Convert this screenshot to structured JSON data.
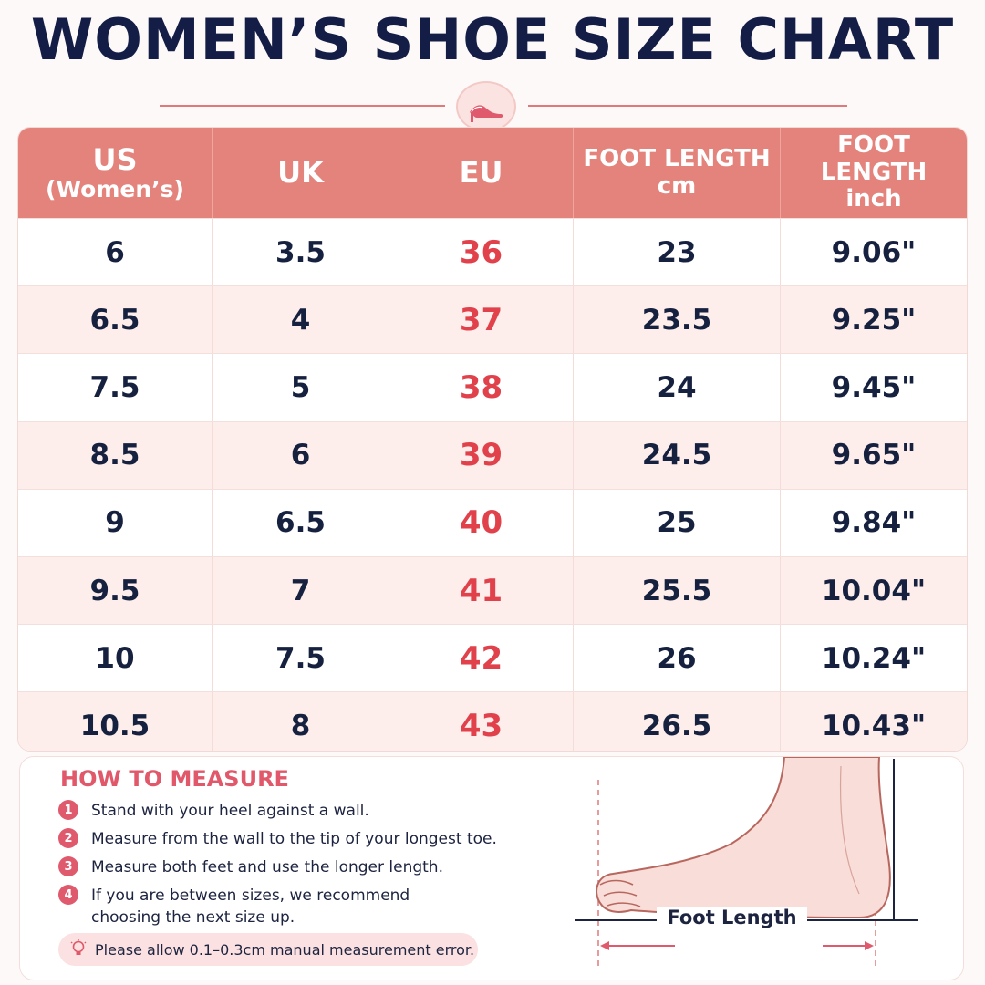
{
  "title": "WOMEN’S SHOE SIZE CHART",
  "header": {
    "us": "US",
    "us_sub": "(Women’s)",
    "uk": "UK",
    "eu": "EU",
    "cm_1": "FOOT LENGTH",
    "cm_2": "cm",
    "in_1": "FOOT LENGTH",
    "in_2": "inch"
  },
  "rows": [
    {
      "us": "6",
      "uk": "3.5",
      "eu": "36",
      "cm": "23",
      "inch": "9.06\""
    },
    {
      "us": "6.5",
      "uk": "4",
      "eu": "37",
      "cm": "23.5",
      "inch": "9.25\""
    },
    {
      "us": "7.5",
      "uk": "5",
      "eu": "38",
      "cm": "24",
      "inch": "9.45\""
    },
    {
      "us": "8.5",
      "uk": "6",
      "eu": "39",
      "cm": "24.5",
      "inch": "9.65\""
    },
    {
      "us": "9",
      "uk": "6.5",
      "eu": "40",
      "cm": "25",
      "inch": "9.84\""
    },
    {
      "us": "9.5",
      "uk": "7",
      "eu": "41",
      "cm": "25.5",
      "inch": "10.04\""
    },
    {
      "us": "10",
      "uk": "7.5",
      "eu": "42",
      "cm": "26",
      "inch": "10.24\""
    },
    {
      "us": "10.5",
      "uk": "8",
      "eu": "43",
      "cm": "26.5",
      "inch": "10.43\""
    }
  ],
  "measure": {
    "title": "HOW TO MEASURE",
    "steps": [
      {
        "n": "1",
        "text": "Stand with your heel against a wall."
      },
      {
        "n": "2",
        "text": "Measure from the wall to the tip of your longest toe."
      },
      {
        "n": "3",
        "text": "Measure both feet and use the longer length."
      },
      {
        "n": "4",
        "text": "If you are between sizes, we recommend",
        "text2": "choosing the next size up."
      }
    ],
    "note": "Please allow 0.1–0.3cm manual measurement error.",
    "foot_label": "Foot Length"
  },
  "colors": {
    "title": "#131d45",
    "header_bg": "#e4837c",
    "eu_accent": "#e0414a",
    "row_alt": "#fdeeeb",
    "measure_accent": "#e0586a"
  },
  "icons": [
    "high-heel-icon",
    "lightbulb-icon",
    "foot-illustration"
  ]
}
